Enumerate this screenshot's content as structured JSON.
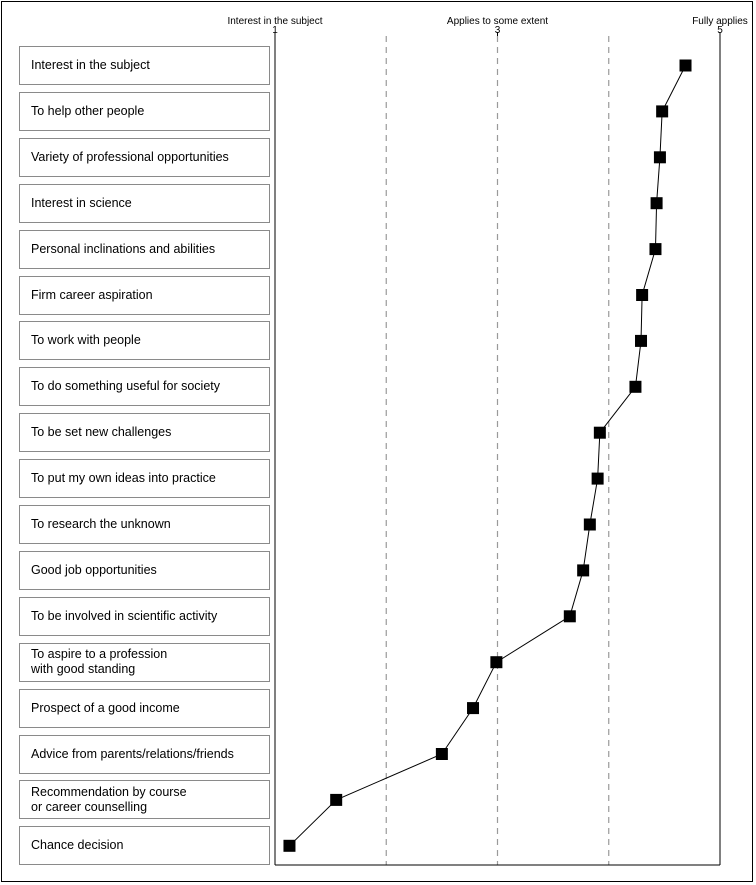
{
  "chart_data": {
    "type": "line",
    "scale_labels": [
      "Interest in the subject",
      "Applies to some extent",
      "Fully applies"
    ],
    "ticks": [
      1,
      3,
      5
    ],
    "xlim": [
      1,
      5
    ],
    "grid": true,
    "marker": "square",
    "color": "#000000",
    "categories": [
      "Interest in the subject",
      "To help other people",
      "Variety of professional opportunities",
      "Interest in science",
      "Personal inclinations and abilities",
      "Firm career aspiration",
      "To work with people",
      "To do something useful for society",
      "To be set new challenges",
      "To put my own ideas into practice",
      "To research the unknown",
      "Good job opportunities",
      "To be involved in scientific activity",
      "To aspire to a profession\nwith good standing",
      "Prospect of a good income",
      "Advice from parents/relations/friends",
      "Recommendation by course\nor career counselling",
      "Chance decision"
    ],
    "values": [
      4.69,
      4.48,
      4.46,
      4.43,
      4.42,
      4.3,
      4.29,
      4.24,
      3.92,
      3.9,
      3.83,
      3.77,
      3.65,
      2.99,
      2.78,
      2.5,
      1.55,
      1.13
    ]
  }
}
